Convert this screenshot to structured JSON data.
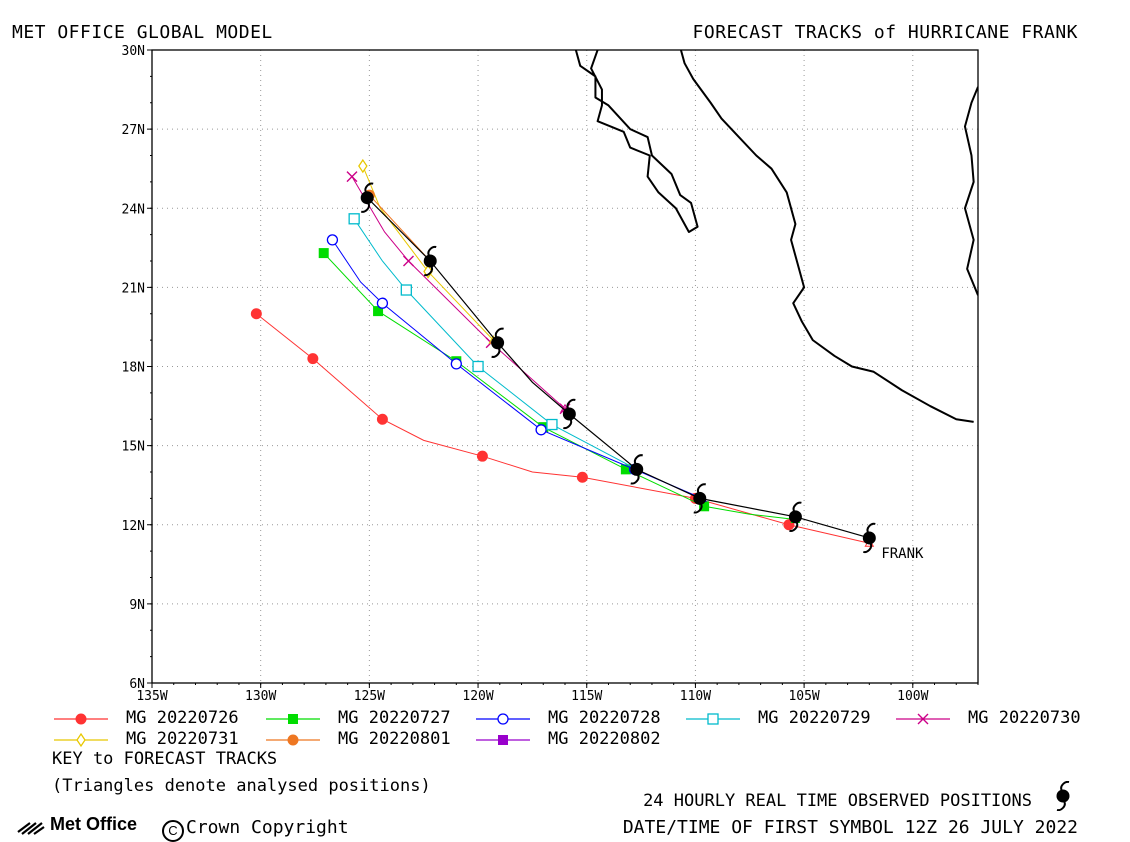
{
  "header": {
    "left_title": "MET OFFICE GLOBAL MODEL",
    "right_title": "FORECAST TRACKS of HURRICANE FRANK"
  },
  "chart_data": {
    "type": "line",
    "title": "FORECAST TRACKS of HURRICANE FRANK",
    "subtitle": "MET OFFICE GLOBAL MODEL",
    "x_axis_ticks": [
      "135W",
      "130W",
      "125W",
      "120W",
      "115W",
      "110W",
      "105W",
      "100W"
    ],
    "y_axis_ticks": [
      "6N",
      "9N",
      "12N",
      "15N",
      "18N",
      "21N",
      "24N",
      "27N",
      "30N"
    ],
    "xlim": [
      -135,
      -97
    ],
    "ylim": [
      6,
      30
    ],
    "grid": true,
    "storm_label": "FRANK",
    "observed": {
      "name": "24 HOURLY REAL TIME OBSERVED POSITIONS",
      "color": "#000000",
      "points": [
        [
          -102.0,
          11.5
        ],
        [
          -105.4,
          12.3
        ],
        [
          -109.8,
          13.0
        ],
        [
          -112.7,
          14.1
        ],
        [
          -115.8,
          16.2
        ],
        [
          -119.1,
          18.9
        ],
        [
          -122.2,
          22.0
        ],
        [
          -125.1,
          24.4
        ]
      ],
      "line": [
        [
          -102.0,
          11.5
        ],
        [
          -105.4,
          12.3
        ],
        [
          -109.8,
          13.0
        ],
        [
          -112.7,
          14.1
        ],
        [
          -115.8,
          16.2
        ],
        [
          -117.5,
          17.4
        ],
        [
          -119.1,
          18.9
        ],
        [
          -122.2,
          22.0
        ],
        [
          -125.1,
          24.4
        ]
      ]
    },
    "series": [
      {
        "name": "MG 20220726",
        "color": "#ff3333",
        "marker": "filled-circle",
        "points": [
          [
            -105.7,
            12.0
          ],
          [
            -110.0,
            13.0
          ],
          [
            -115.2,
            13.8
          ],
          [
            -119.8,
            14.6
          ],
          [
            -124.4,
            16.0
          ],
          [
            -127.6,
            18.3
          ],
          [
            -130.2,
            20.0
          ]
        ],
        "line": [
          [
            -102.0,
            11.3
          ],
          [
            -105.7,
            12.0
          ],
          [
            -110.0,
            13.0
          ],
          [
            -115.2,
            13.8
          ],
          [
            -117.5,
            14.0
          ],
          [
            -119.8,
            14.6
          ],
          [
            -122.5,
            15.2
          ],
          [
            -124.4,
            16.0
          ],
          [
            -127.6,
            18.3
          ],
          [
            -130.2,
            20.0
          ]
        ]
      },
      {
        "name": "MG 20220727",
        "color": "#00dd00",
        "marker": "filled-square",
        "points": [
          [
            -109.6,
            12.7
          ],
          [
            -113.2,
            14.1
          ],
          [
            -117.0,
            15.7
          ],
          [
            -121.0,
            18.2
          ],
          [
            -124.6,
            20.1
          ],
          [
            -127.1,
            22.3
          ]
        ],
        "line": [
          [
            -105.4,
            12.2
          ],
          [
            -107.5,
            12.4
          ],
          [
            -109.6,
            12.7
          ],
          [
            -113.2,
            14.1
          ],
          [
            -117.0,
            15.7
          ],
          [
            -121.0,
            18.2
          ],
          [
            -124.6,
            20.1
          ],
          [
            -127.1,
            22.3
          ]
        ]
      },
      {
        "name": "MG 20220728",
        "color": "#0000ff",
        "marker": "open-circle",
        "points": [
          [
            -112.8,
            14.1
          ],
          [
            -117.1,
            15.6
          ],
          [
            -121.0,
            18.1
          ],
          [
            -124.4,
            20.4
          ],
          [
            -126.7,
            22.8
          ]
        ],
        "line": [
          [
            -109.7,
            13.0
          ],
          [
            -112.8,
            14.1
          ],
          [
            -117.1,
            15.6
          ],
          [
            -121.0,
            18.1
          ],
          [
            -124.4,
            20.4
          ],
          [
            -125.4,
            21.2
          ],
          [
            -126.7,
            22.8
          ]
        ]
      },
      {
        "name": "MG 20220729",
        "color": "#00bbcc",
        "marker": "open-square",
        "points": [
          [
            -116.6,
            15.8
          ],
          [
            -120.0,
            18.0
          ],
          [
            -123.3,
            20.9
          ],
          [
            -125.7,
            23.6
          ]
        ],
        "line": [
          [
            -112.7,
            14.1
          ],
          [
            -116.6,
            15.8
          ],
          [
            -120.0,
            18.0
          ],
          [
            -123.3,
            20.9
          ],
          [
            -124.4,
            22.0
          ],
          [
            -125.7,
            23.6
          ]
        ]
      },
      {
        "name": "MG 20220730",
        "color": "#cc0088",
        "marker": "x",
        "points": [
          [
            -116.0,
            16.4
          ],
          [
            -119.4,
            18.9
          ],
          [
            -123.2,
            22.0
          ],
          [
            -125.8,
            25.2
          ]
        ],
        "line": [
          [
            -116.0,
            16.4
          ],
          [
            -119.4,
            18.9
          ],
          [
            -123.2,
            22.0
          ],
          [
            -124.3,
            23.1
          ],
          [
            -125.8,
            25.2
          ]
        ]
      },
      {
        "name": "MG 20220731",
        "color": "#e8c800",
        "marker": "open-diamond",
        "points": [
          [
            -122.3,
            21.6
          ],
          [
            -125.3,
            25.6
          ]
        ],
        "line": [
          [
            -119.3,
            19.0
          ],
          [
            -122.3,
            21.6
          ],
          [
            -124.5,
            24.0
          ],
          [
            -125.3,
            25.6
          ]
        ]
      },
      {
        "name": "MG 20220801",
        "color": "#ee7722",
        "marker": "filled-circle",
        "points": [
          [
            -125.0,
            24.5
          ]
        ],
        "line": [
          [
            -122.2,
            22.0
          ],
          [
            -125.0,
            24.5
          ]
        ]
      },
      {
        "name": "MG 20220802",
        "color": "#9900cc",
        "marker": "filled-square",
        "points": [],
        "line": []
      }
    ]
  },
  "coastlines": [
    [
      [
        -111.5,
        31.0
      ],
      [
        -111.3,
        30.5
      ],
      [
        -110.7,
        30.1
      ],
      [
        -110.5,
        29.5
      ],
      [
        -110.1,
        28.9
      ],
      [
        -109.3,
        28.0
      ],
      [
        -108.8,
        27.4
      ],
      [
        -108.0,
        26.7
      ],
      [
        -107.2,
        26.0
      ],
      [
        -106.5,
        25.5
      ],
      [
        -105.8,
        24.6
      ],
      [
        -105.4,
        23.4
      ],
      [
        -105.6,
        22.8
      ],
      [
        -105.3,
        21.9
      ],
      [
        -105.0,
        21.0
      ],
      [
        -105.5,
        20.4
      ],
      [
        -105.1,
        19.7
      ],
      [
        -104.6,
        19.0
      ],
      [
        -103.6,
        18.4
      ],
      [
        -102.8,
        18.0
      ],
      [
        -101.8,
        17.8
      ],
      [
        -100.5,
        17.1
      ],
      [
        -99.2,
        16.5
      ],
      [
        -98.0,
        16.0
      ],
      [
        -97.2,
        15.9
      ]
    ],
    [
      [
        -115.7,
        31.0
      ],
      [
        -115.8,
        30.5
      ],
      [
        -115.5,
        30.0
      ],
      [
        -115.3,
        29.4
      ],
      [
        -114.6,
        29.0
      ],
      [
        -114.6,
        28.2
      ],
      [
        -114.0,
        27.9
      ],
      [
        -113.0,
        27.0
      ],
      [
        -112.2,
        26.7
      ],
      [
        -112.0,
        26.0
      ],
      [
        -111.1,
        25.3
      ],
      [
        -110.7,
        24.5
      ],
      [
        -110.2,
        24.2
      ],
      [
        -109.9,
        23.3
      ],
      [
        -110.3,
        23.1
      ],
      [
        -110.9,
        24.0
      ],
      [
        -111.7,
        24.6
      ],
      [
        -112.2,
        25.2
      ],
      [
        -112.1,
        26.0
      ],
      [
        -113.0,
        26.3
      ],
      [
        -113.3,
        26.9
      ],
      [
        -114.5,
        27.3
      ],
      [
        -114.3,
        27.9
      ],
      [
        -114.3,
        28.5
      ],
      [
        -114.8,
        29.3
      ],
      [
        -114.5,
        30.0
      ],
      [
        -114.6,
        30.6
      ],
      [
        -114.8,
        31.0
      ]
    ],
    [
      [
        -97.0,
        20.7
      ],
      [
        -97.5,
        21.7
      ],
      [
        -97.2,
        22.8
      ],
      [
        -97.6,
        24.0
      ],
      [
        -97.2,
        25.0
      ],
      [
        -97.3,
        26.0
      ],
      [
        -97.6,
        27.1
      ],
      [
        -97.3,
        28.0
      ],
      [
        -97.0,
        28.6
      ]
    ]
  ],
  "legend": [
    {
      "label": "MG 20220726",
      "color": "#ff3333",
      "marker": "filled-circle"
    },
    {
      "label": "MG 20220727",
      "color": "#00dd00",
      "marker": "filled-square"
    },
    {
      "label": "MG 20220728",
      "color": "#0000ff",
      "marker": "open-circle"
    },
    {
      "label": "MG 20220729",
      "color": "#00bbcc",
      "marker": "open-square"
    },
    {
      "label": "MG 20220730",
      "color": "#cc0088",
      "marker": "x"
    },
    {
      "label": "MG 20220731",
      "color": "#e8c800",
      "marker": "open-diamond"
    },
    {
      "label": "MG 20220801",
      "color": "#ee7722",
      "marker": "filled-circle"
    },
    {
      "label": "MG 20220802",
      "color": "#9900cc",
      "marker": "filled-square"
    }
  ],
  "footer": {
    "key_title": "KEY to FORECAST TRACKS",
    "key_note": "(Triangles denote analysed positions)",
    "observed_label": "24 HOURLY REAL TIME OBSERVED POSITIONS",
    "datetime_label": "DATE/TIME OF FIRST SYMBOL 12Z 26 JULY 2022",
    "logo_text": "Met Office",
    "copyright_symbol": "C",
    "copyright_text": "Crown Copyright"
  }
}
